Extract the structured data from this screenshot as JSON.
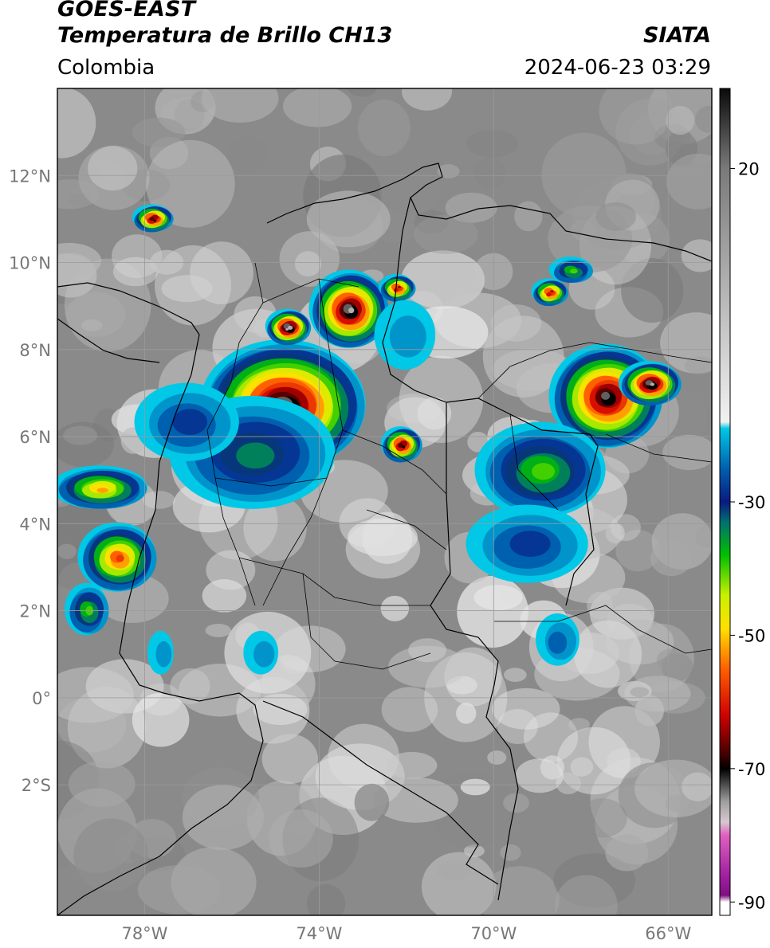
{
  "header": {
    "satellite": "GOES-EAST",
    "product": "Temperatura de Brillo CH13",
    "region": "Colombia",
    "agency": "SIATA",
    "datetime": "2024-06-23 03:29"
  },
  "map": {
    "lon_range": [
      -80,
      -65
    ],
    "lat_range": [
      -5,
      14
    ],
    "lat_ticks": [
      {
        "value": 12,
        "label": "12°N"
      },
      {
        "value": 10,
        "label": "10°N"
      },
      {
        "value": 8,
        "label": "8°N"
      },
      {
        "value": 6,
        "label": "6°N"
      },
      {
        "value": 4,
        "label": "4°N"
      },
      {
        "value": 2,
        "label": "2°N"
      },
      {
        "value": 0,
        "label": "0°"
      },
      {
        "value": -2,
        "label": "2°S"
      }
    ],
    "lon_ticks": [
      {
        "value": -78,
        "label": "78°W"
      },
      {
        "value": -74,
        "label": "74°W"
      },
      {
        "value": -70,
        "label": "70°W"
      },
      {
        "value": -66,
        "label": "66°W"
      }
    ],
    "gridlines": true
  },
  "colorbar": {
    "range": [
      -92,
      32
    ],
    "ticks": [
      {
        "value": 20,
        "label": "20"
      },
      {
        "value": -30,
        "label": "-30"
      },
      {
        "value": -50,
        "label": "-50"
      },
      {
        "value": -70,
        "label": "-70"
      },
      {
        "value": -90,
        "label": "-90"
      }
    ],
    "stops": [
      {
        "value": 32,
        "color": "#0a0a0a"
      },
      {
        "value": 20,
        "color": "#7a7a7a"
      },
      {
        "value": -18,
        "color": "#f2f2f2"
      },
      {
        "value": -19,
        "color": "#00c8e6"
      },
      {
        "value": -25,
        "color": "#0060b0"
      },
      {
        "value": -30,
        "color": "#0a1a80"
      },
      {
        "value": -33,
        "color": "#007070"
      },
      {
        "value": -38,
        "color": "#00c000"
      },
      {
        "value": -44,
        "color": "#c8f000"
      },
      {
        "value": -49,
        "color": "#ffe000"
      },
      {
        "value": -55,
        "color": "#ff6000"
      },
      {
        "value": -62,
        "color": "#d00000"
      },
      {
        "value": -68,
        "color": "#400000"
      },
      {
        "value": -70,
        "color": "#000000"
      },
      {
        "value": -75,
        "color": "#a0a0a0"
      },
      {
        "value": -78,
        "color": "#d8c8d0"
      },
      {
        "value": -80,
        "color": "#e060c0"
      },
      {
        "value": -86,
        "color": "#a020a0"
      },
      {
        "value": -89,
        "color": "#801080"
      },
      {
        "value": -90,
        "color": "#ffffff"
      }
    ]
  },
  "storms": [
    {
      "lon": -74.8,
      "lat": 6.7,
      "rx": 1.9,
      "ry": 1.5,
      "tmin": -76
    },
    {
      "lon": -73.3,
      "lat": 8.9,
      "rx": 0.9,
      "ry": 0.9,
      "tmin": -78
    },
    {
      "lon": -74.7,
      "lat": 8.5,
      "rx": 0.5,
      "ry": 0.4,
      "tmin": -80
    },
    {
      "lon": -77.8,
      "lat": 11.0,
      "rx": 0.45,
      "ry": 0.3,
      "tmin": -72
    },
    {
      "lon": -72.2,
      "lat": 9.4,
      "rx": 0.4,
      "ry": 0.3,
      "tmin": -64
    },
    {
      "lon": -72.1,
      "lat": 5.8,
      "rx": 0.45,
      "ry": 0.4,
      "tmin": -70
    },
    {
      "lon": -67.4,
      "lat": 6.9,
      "rx": 1.3,
      "ry": 1.2,
      "tmin": -74
    },
    {
      "lon": -66.4,
      "lat": 7.2,
      "rx": 0.7,
      "ry": 0.5,
      "tmin": -76
    },
    {
      "lon": -68.7,
      "lat": 9.3,
      "rx": 0.4,
      "ry": 0.3,
      "tmin": -66
    },
    {
      "lon": -78.6,
      "lat": 3.2,
      "rx": 0.9,
      "ry": 0.8,
      "tmin": -58
    },
    {
      "lon": -79.0,
      "lat": 4.8,
      "rx": 1.1,
      "ry": 0.5,
      "tmin": -52
    },
    {
      "lon": -68.9,
      "lat": 5.2,
      "rx": 1.5,
      "ry": 1.1,
      "tmin": -40
    },
    {
      "lon": -75.5,
      "lat": 5.6,
      "rx": 1.9,
      "ry": 1.3,
      "tmin": -36
    },
    {
      "lon": -77.0,
      "lat": 6.3,
      "rx": 1.2,
      "ry": 0.9,
      "tmin": -30
    },
    {
      "lon": -69.2,
      "lat": 3.5,
      "rx": 1.4,
      "ry": 0.9,
      "tmin": -28
    },
    {
      "lon": -68.5,
      "lat": 1.3,
      "rx": 0.5,
      "ry": 0.6,
      "tmin": -26
    },
    {
      "lon": -79.3,
      "lat": 2.0,
      "rx": 0.5,
      "ry": 0.6,
      "tmin": -40
    },
    {
      "lon": -72.0,
      "lat": 8.3,
      "rx": 0.7,
      "ry": 0.8,
      "tmin": -24
    },
    {
      "lon": -68.2,
      "lat": 9.8,
      "rx": 0.5,
      "ry": 0.3,
      "tmin": -40
    },
    {
      "lon": -75.3,
      "lat": 1.0,
      "rx": 0.4,
      "ry": 0.5,
      "tmin": -22
    },
    {
      "lon": -77.6,
      "lat": 1.0,
      "rx": 0.3,
      "ry": 0.5,
      "tmin": -24
    }
  ]
}
